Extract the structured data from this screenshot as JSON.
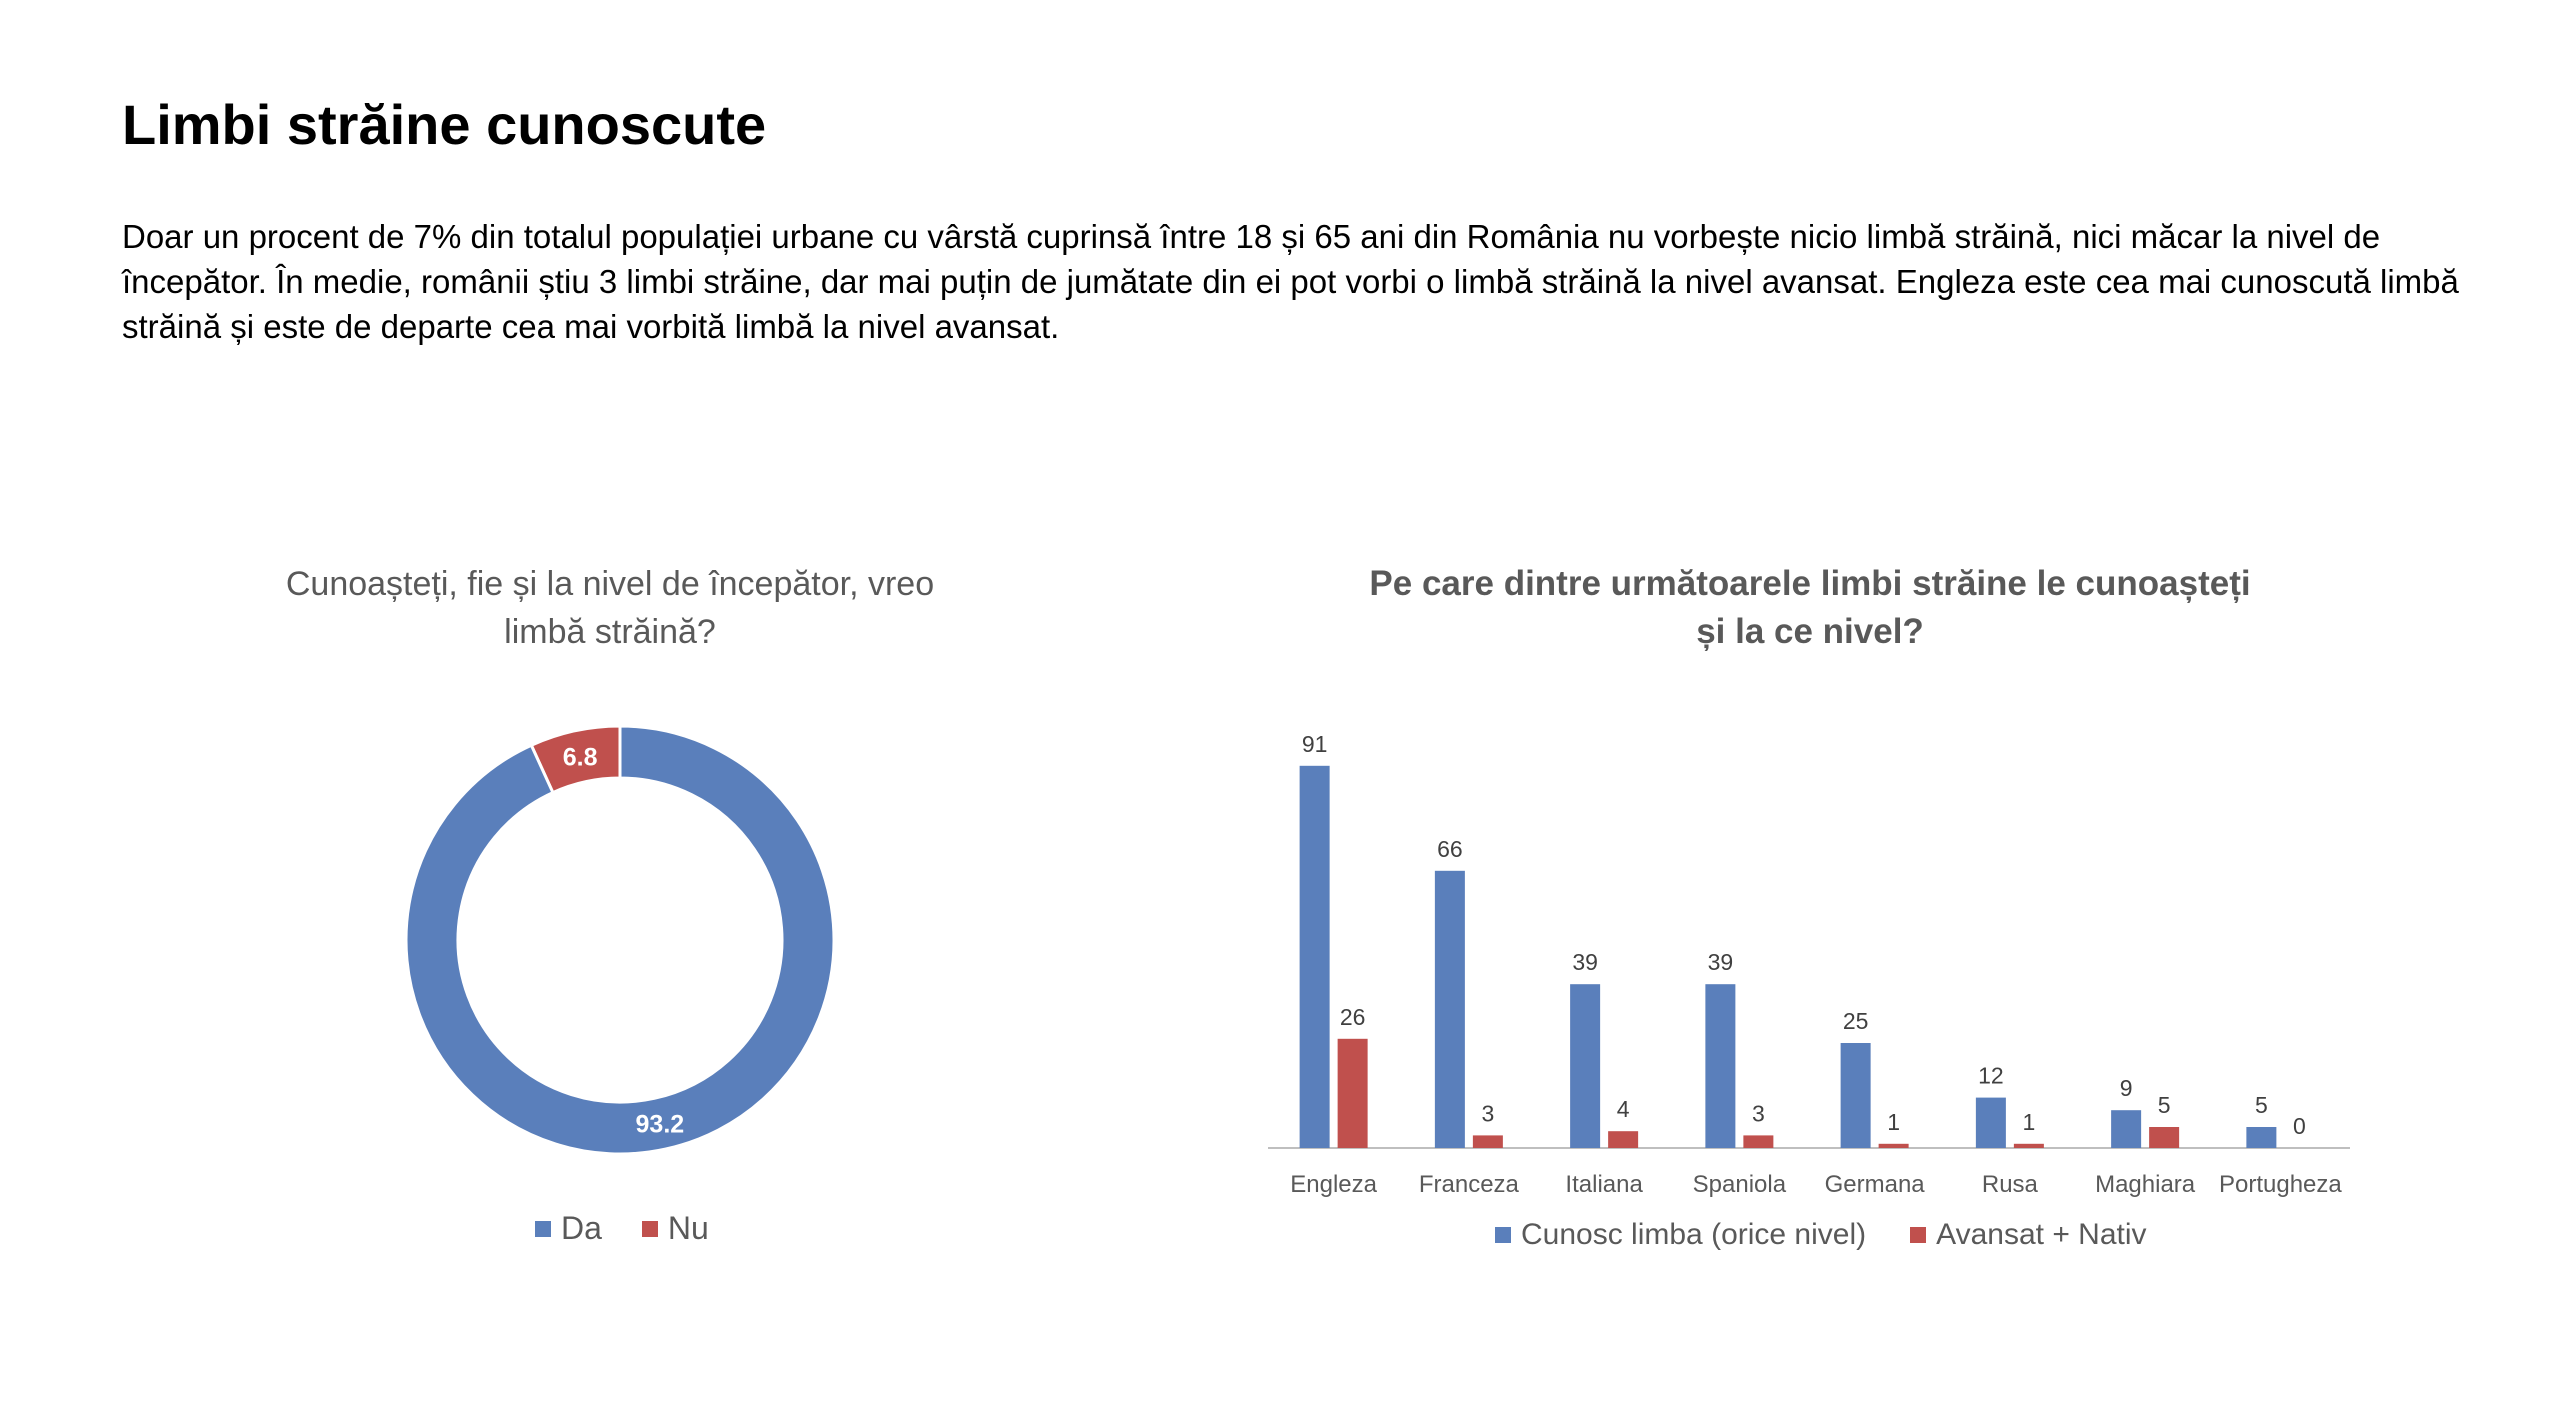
{
  "slide": {
    "title": "Limbi străine cunoscute",
    "body": "Doar un procent de 7% din totalul populației urbane cu vârstă cuprinsă între 18 și 65 ani din România nu vorbește nicio limbă străină, nici măcar la nivel de începător.  În medie, românii știu 3 limbi străine, dar mai puțin de jumătate din ei pot vorbi o limbă străină la nivel avansat. Engleza este cea mai cunoscută limbă străină și este de departe cea mai vorbită limbă la nivel avansat."
  },
  "colors": {
    "blue": "#5A7FBB",
    "red": "#C0504D",
    "axis": "#BFBFBF",
    "text": "#595959"
  },
  "chart_data": [
    {
      "type": "pie",
      "title_line1": "Cunoașteți, fie și la nivel de începător, vreo",
      "title_line2": "limbă străină?",
      "categories": [
        "Da",
        "Nu"
      ],
      "values": [
        93.2,
        6.8
      ],
      "value_labels": [
        "93.2",
        "6.8"
      ],
      "colors": [
        "#5A7FBB",
        "#C0504D"
      ],
      "legend": "bottom"
    },
    {
      "type": "bar",
      "title_line1": "Pe care dintre următoarele limbi străine le cunoașteți",
      "title_line2": "și la ce nivel?",
      "categories": [
        "Engleza",
        "Franceza",
        "Italiana",
        "Spaniola",
        "Germana",
        "Rusa",
        "Maghiara",
        "Portugheza"
      ],
      "series": [
        {
          "name": "Cunosc limba (orice nivel)",
          "color": "#5A7FBB",
          "values": [
            91,
            66,
            39,
            39,
            25,
            12,
            9,
            5
          ]
        },
        {
          "name": "Avansat + Nativ",
          "color": "#C0504D",
          "values": [
            26,
            3,
            4,
            3,
            1,
            1,
            5,
            0
          ]
        }
      ],
      "ylim": [
        0,
        100
      ],
      "grid": false,
      "legend": "bottom"
    }
  ]
}
